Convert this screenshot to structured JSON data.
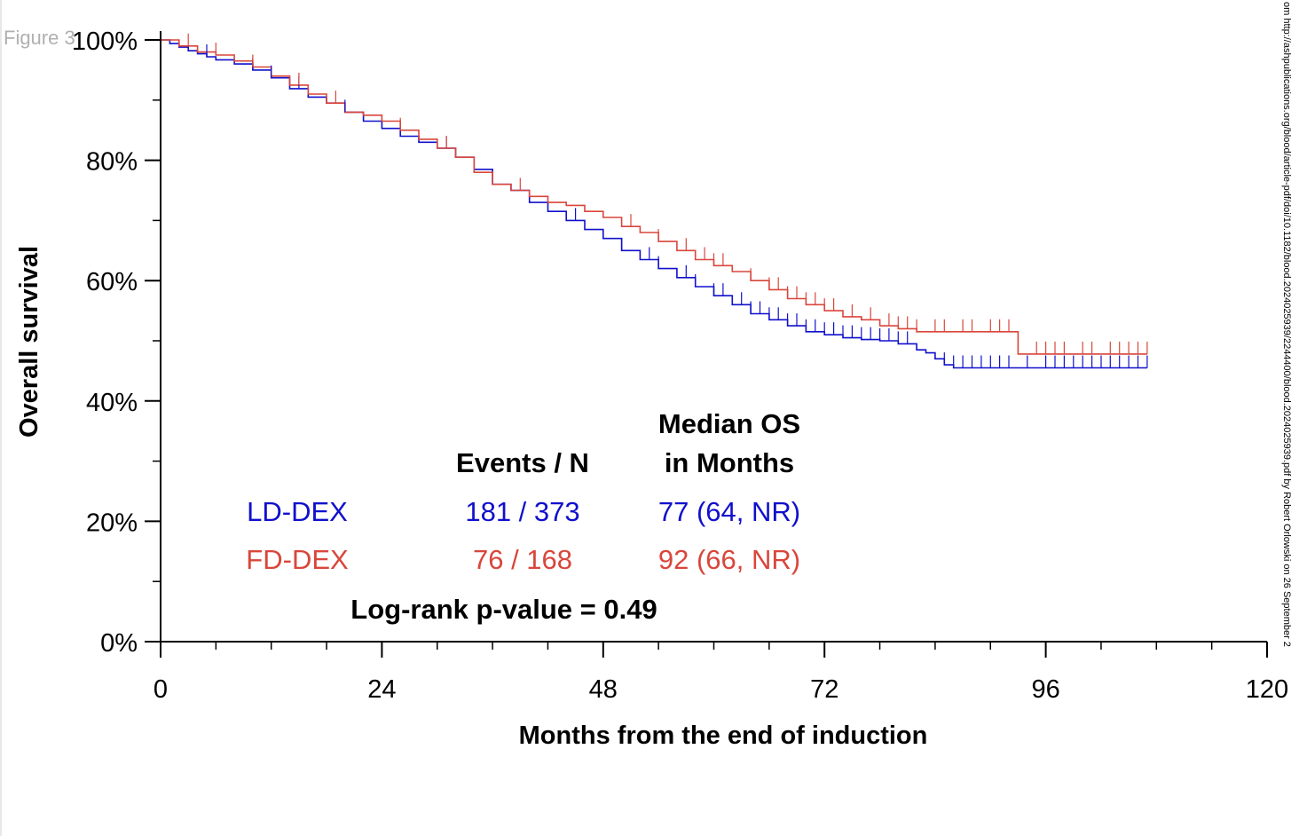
{
  "figure_label": "Figure 3",
  "side_note": "om http://ashpublications.org/blood/article-pdf/doi/10.1182/blood.2024025939/2244400/blood.2024025939.pdf by Robert Orlowski on 26 September 2",
  "colors": {
    "ld": "#1010cc",
    "fd": "#d9463b",
    "axis": "#000000"
  },
  "chart_data": {
    "type": "line",
    "subtype": "kaplan-meier-step",
    "xlabel": "Months from the end of induction",
    "ylabel": "Overall survival",
    "xlim": [
      0,
      120
    ],
    "ylim": [
      0,
      100
    ],
    "x_ticks": [
      0,
      24,
      48,
      72,
      96,
      120
    ],
    "x_minor_step": 6,
    "y_ticks": [
      0,
      20,
      40,
      60,
      80,
      100
    ],
    "y_tick_labels": [
      "0%",
      "20%",
      "40%",
      "60%",
      "80%",
      "100%"
    ],
    "y_minor_step": 10,
    "grid": false,
    "series": [
      {
        "name": "LD-DEX",
        "color": "#1010cc",
        "x": [
          0,
          1,
          2,
          3,
          4,
          5,
          6,
          8,
          10,
          12,
          14,
          16,
          18,
          20,
          22,
          24,
          26,
          28,
          30,
          32,
          34,
          36,
          38,
          40,
          42,
          44,
          46,
          48,
          50,
          52,
          54,
          56,
          58,
          60,
          62,
          64,
          66,
          68,
          70,
          72,
          74,
          76,
          78,
          80,
          82,
          83,
          84,
          85,
          86,
          88,
          90,
          92,
          94,
          96,
          98,
          100,
          102,
          104,
          106,
          107
        ],
        "y": [
          100,
          99.4,
          98.8,
          98.2,
          97.7,
          97.2,
          96.7,
          96.0,
          95.0,
          93.7,
          91.9,
          90.5,
          89.5,
          88.0,
          86.5,
          85.3,
          84.0,
          83.0,
          82.0,
          80.5,
          78.5,
          76.0,
          75.0,
          73.0,
          71.5,
          70.0,
          68.5,
          67.0,
          65.0,
          63.5,
          62.0,
          60.5,
          59.0,
          57.5,
          56.0,
          54.5,
          53.5,
          52.5,
          51.5,
          51.0,
          50.5,
          50.2,
          50.0,
          49.5,
          48.5,
          48.0,
          47.0,
          46.0,
          45.5,
          45.5,
          45.5,
          45.5,
          45.5,
          45.5,
          45.5,
          45.5,
          45.5,
          45.5,
          45.5,
          45.5
        ],
        "censor_x": [
          5,
          10,
          12,
          15,
          20,
          31,
          45,
          50,
          53,
          54,
          57,
          58,
          60,
          61,
          63,
          64,
          65,
          66,
          67,
          68,
          69,
          70,
          71,
          72,
          73,
          74,
          75,
          76,
          77,
          78,
          79,
          80,
          81,
          85,
          86,
          87,
          88,
          89,
          90,
          91,
          92,
          94,
          96,
          97,
          98,
          99,
          100,
          101,
          102,
          103,
          104,
          105,
          106,
          107
        ]
      },
      {
        "name": "FD-DEX",
        "color": "#d9463b",
        "x": [
          0,
          2,
          4,
          6,
          8,
          10,
          12,
          14,
          16,
          18,
          20,
          22,
          24,
          26,
          28,
          30,
          32,
          34,
          36,
          38,
          40,
          42,
          44,
          46,
          48,
          50,
          52,
          54,
          56,
          58,
          60,
          62,
          64,
          66,
          68,
          70,
          72,
          74,
          76,
          78,
          80,
          82,
          84,
          86,
          88,
          90,
          92,
          93,
          94,
          96,
          98,
          100,
          102,
          104,
          106,
          107
        ],
        "y": [
          100,
          99.0,
          98.0,
          97.5,
          96.5,
          95.5,
          94.0,
          92.5,
          91.0,
          89.5,
          88.0,
          87.5,
          86.5,
          85.0,
          83.5,
          82.0,
          80.5,
          78.0,
          76.0,
          75.0,
          74.0,
          73.0,
          72.5,
          71.5,
          70.5,
          69.0,
          68.0,
          66.5,
          65.0,
          63.5,
          62.5,
          61.5,
          60.0,
          58.5,
          57.0,
          56.0,
          55.0,
          54.0,
          53.5,
          52.5,
          52.0,
          51.5,
          51.5,
          51.5,
          51.5,
          51.5,
          51.5,
          47.8,
          47.8,
          47.8,
          47.8,
          47.8,
          47.8,
          47.8,
          47.8,
          47.8
        ],
        "censor_x": [
          3,
          6,
          10,
          15,
          19,
          26,
          31,
          39,
          51,
          54,
          57,
          59,
          60,
          61,
          64,
          66,
          67,
          68,
          69,
          70,
          71,
          72,
          73,
          75,
          77,
          79,
          80,
          81,
          82,
          84,
          85,
          87,
          88,
          90,
          91,
          92,
          93,
          95,
          96,
          97,
          98,
          100,
          101,
          103,
          104,
          105,
          106,
          107
        ]
      }
    ],
    "annotations": {
      "events_header": "Events / N",
      "median_header_line1": "Median OS",
      "median_header_line2": "in Months",
      "rows": [
        {
          "name": "LD-DEX",
          "events": "181 / 373",
          "median": "77 (64, NR)",
          "color": "#1010cc"
        },
        {
          "name": "FD-DEX",
          "events": "76 / 168",
          "median": "92 (66, NR)",
          "color": "#d9463b"
        }
      ],
      "pvalue": "Log-rank p-value = 0.49"
    }
  }
}
